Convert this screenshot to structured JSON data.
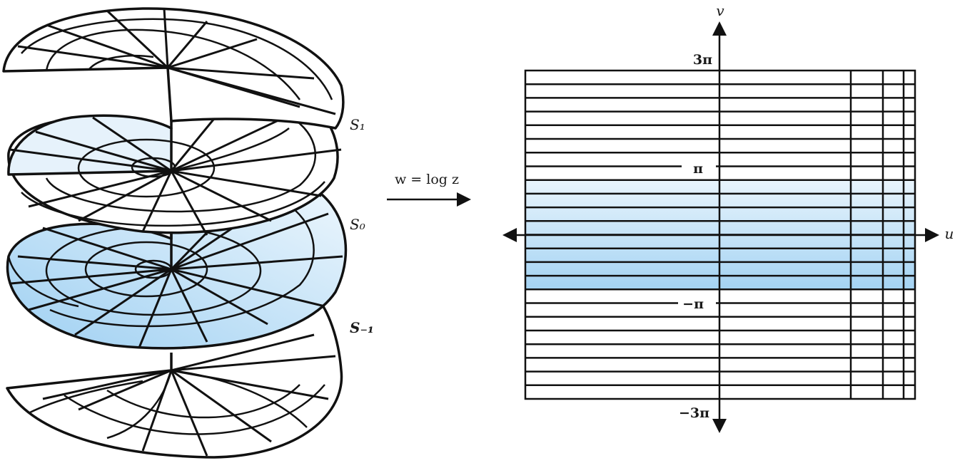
{
  "figure": {
    "left_panel": {
      "sheet_labels": [
        "S₁",
        "S₀",
        "S₋₁"
      ]
    },
    "mapping": {
      "label": "w = log z"
    },
    "right_panel": {
      "axis_labels": {
        "horizontal": "u",
        "vertical": "v"
      },
      "tick_labels": [
        "3π",
        "π",
        "−π",
        "−3π"
      ]
    },
    "colors": {
      "stroke": "#111111",
      "highlight_light": "#e6f2fb",
      "highlight_dark": "#a9d6f4"
    }
  }
}
